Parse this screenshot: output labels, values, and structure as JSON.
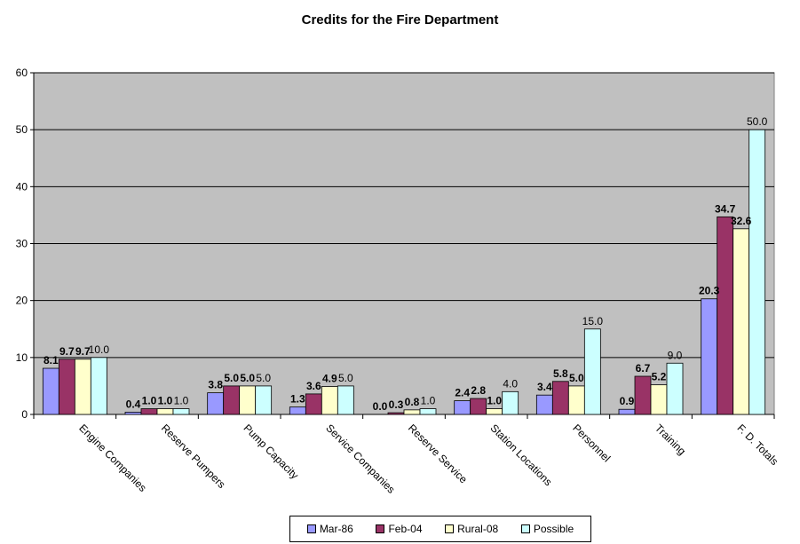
{
  "chart_data": {
    "type": "bar",
    "title": "Credits for the Fire Department",
    "xlabel": "",
    "ylabel": "",
    "ylim": [
      0,
      60
    ],
    "yticks": [
      0,
      10,
      20,
      30,
      40,
      50,
      60
    ],
    "grid": true,
    "legend_position": "bottom",
    "plot_background": "#C0C0C0",
    "categories": [
      "Engine Companies",
      "Reserve Pumpers",
      "Pump Capacity",
      "Service Companies",
      "Reserve Service",
      "Station Locations",
      "Personnel",
      "Training",
      "F. D. Totals"
    ],
    "series": [
      {
        "name": "Mar-86",
        "color": "#9999FF",
        "values": [
          8.1,
          0.4,
          3.8,
          1.3,
          0.0,
          2.4,
          3.4,
          0.9,
          20.3
        ],
        "labels": [
          "8.1",
          "0.4",
          "3.8",
          "1.3",
          "0.0",
          "2.4",
          "3.4",
          "0.9",
          "20.3"
        ]
      },
      {
        "name": "Feb-04",
        "color": "#993366",
        "values": [
          9.7,
          1.0,
          5.0,
          3.6,
          0.3,
          2.8,
          5.8,
          6.7,
          34.7
        ],
        "labels": [
          "9.7",
          "1.0",
          "5.0",
          "3.6",
          "0.3",
          "2.8",
          "5.8",
          "6.7",
          "34.7"
        ]
      },
      {
        "name": "Rural-08",
        "color": "#FFFFCC",
        "values": [
          9.7,
          1.0,
          5.0,
          4.9,
          0.8,
          1.0,
          5.0,
          5.2,
          32.6
        ],
        "labels": [
          "9.7",
          "1.0",
          "5.0",
          "4.9",
          "0.8",
          "1.0",
          "5.0",
          "5.2",
          "32.6"
        ]
      },
      {
        "name": "Possible",
        "color": "#CCFFFF",
        "values": [
          10.0,
          1.0,
          5.0,
          5.0,
          1.0,
          4.0,
          15.0,
          9.0,
          50.0
        ],
        "labels": [
          "10.0",
          "1.0",
          "5.0",
          "5.0",
          "1.0",
          "4.0",
          "15.0",
          "9.0",
          "50.0"
        ]
      }
    ]
  }
}
